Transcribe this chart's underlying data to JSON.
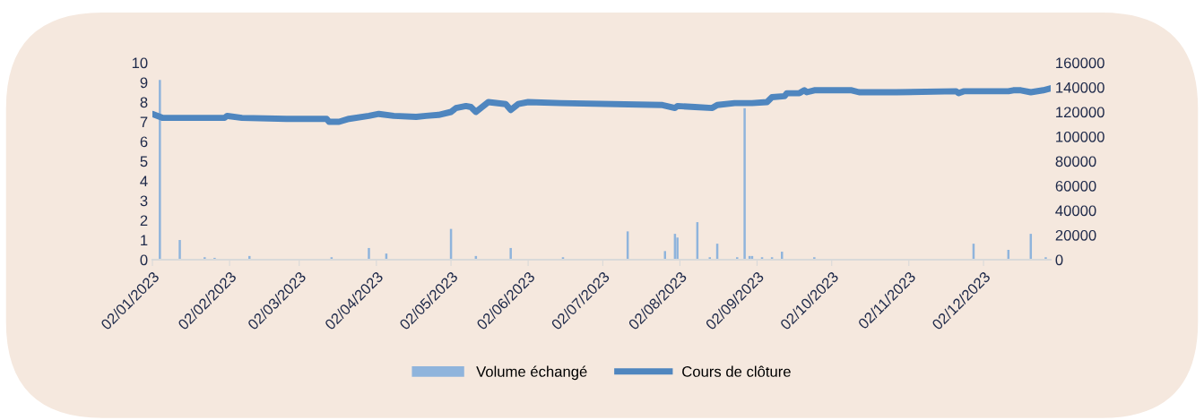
{
  "chart_data": {
    "type": "line",
    "xlim": [
      "2023-01-02",
      "2023-12-29"
    ],
    "xticks": [
      {
        "value": "2023-01-02",
        "label": "02/01/2023"
      },
      {
        "value": "2023-02-02",
        "label": "02/02/2023"
      },
      {
        "value": "2023-03-02",
        "label": "02/03/2023"
      },
      {
        "value": "2023-04-02",
        "label": "02/04/2023"
      },
      {
        "value": "2023-05-02",
        "label": "02/05/2023"
      },
      {
        "value": "2023-06-02",
        "label": "02/06/2023"
      },
      {
        "value": "2023-07-02",
        "label": "02/07/2023"
      },
      {
        "value": "2023-08-02",
        "label": "02/08/2023"
      },
      {
        "value": "2023-09-02",
        "label": "02/09/2023"
      },
      {
        "value": "2023-10-02",
        "label": "02/10/2023"
      },
      {
        "value": "2023-11-02",
        "label": "02/11/2023"
      },
      {
        "value": "2023-12-02",
        "label": "02/12/2023"
      }
    ],
    "ylim": [
      0,
      10
    ],
    "yticks": [
      0,
      1,
      2,
      3,
      4,
      5,
      6,
      7,
      8,
      9,
      10
    ],
    "y2lim": [
      0,
      160000
    ],
    "y2ticks": [
      0,
      20000,
      40000,
      60000,
      80000,
      100000,
      120000,
      140000,
      160000
    ],
    "grid": false,
    "legend": "bottom",
    "series": [
      {
        "name": "Volume échangé",
        "type": "bar",
        "axis": "y2",
        "color": "#8fb4dc",
        "x": [
          "2023-01-05",
          "2023-01-13",
          "2023-01-23",
          "2023-01-27",
          "2023-02-10",
          "2023-03-15",
          "2023-03-30",
          "2023-04-06",
          "2023-05-02",
          "2023-05-12",
          "2023-05-26",
          "2023-06-16",
          "2023-06-23",
          "2023-07-12",
          "2023-07-27",
          "2023-07-31",
          "2023-08-01",
          "2023-08-09",
          "2023-08-14",
          "2023-08-17",
          "2023-08-25",
          "2023-08-28",
          "2023-08-30",
          "2023-08-31",
          "2023-09-04",
          "2023-09-08",
          "2023-09-12",
          "2023-09-25",
          "2023-11-28",
          "2023-12-12",
          "2023-12-21",
          "2023-12-27"
        ],
        "values": [
          146000,
          16000,
          2000,
          1500,
          3000,
          2000,
          9500,
          5000,
          25000,
          3000,
          9500,
          2000,
          null,
          23000,
          7000,
          21000,
          18000,
          30500,
          2000,
          13000,
          2000,
          123000,
          3000,
          3000,
          2000,
          2000,
          6500,
          2000,
          13000,
          8000,
          21000,
          2000
        ]
      },
      {
        "name": "Cours de clôture",
        "axis": "y",
        "color": "#4f86bf",
        "x": [
          "2023-01-02",
          "2023-01-06",
          "2023-01-31",
          "2023-02-01",
          "2023-02-07",
          "2023-02-25",
          "2023-03-13",
          "2023-03-14",
          "2023-03-18",
          "2023-03-22",
          "2023-03-30",
          "2023-04-03",
          "2023-04-09",
          "2023-04-18",
          "2023-04-22",
          "2023-04-27",
          "2023-05-02",
          "2023-05-04",
          "2023-05-08",
          "2023-05-10",
          "2023-05-12",
          "2023-05-17",
          "2023-05-24",
          "2023-05-26",
          "2023-05-29",
          "2023-06-02",
          "2023-06-15",
          "2023-07-26",
          "2023-07-31",
          "2023-08-01",
          "2023-08-08",
          "2023-08-15",
          "2023-08-17",
          "2023-08-24",
          "2023-08-31",
          "2023-09-06",
          "2023-09-08",
          "2023-09-13",
          "2023-09-14",
          "2023-09-19",
          "2023-09-21",
          "2023-09-22",
          "2023-09-25",
          "2023-10-10",
          "2023-10-13",
          "2023-10-28",
          "2023-11-21",
          "2023-11-22",
          "2023-11-24",
          "2023-12-12",
          "2023-12-14",
          "2023-12-17",
          "2023-12-21",
          "2023-12-26",
          "2023-12-29"
        ],
        "values": [
          7.4,
          7.2,
          7.2,
          7.3,
          7.2,
          7.15,
          7.15,
          7.0,
          7.0,
          7.15,
          7.3,
          7.4,
          7.3,
          7.25,
          7.3,
          7.35,
          7.5,
          7.7,
          7.8,
          7.75,
          7.5,
          8.0,
          7.9,
          7.6,
          7.9,
          8.0,
          7.95,
          7.85,
          7.7,
          7.8,
          7.75,
          7.7,
          7.85,
          7.95,
          7.95,
          8.0,
          8.25,
          8.3,
          8.45,
          8.45,
          8.6,
          8.5,
          8.6,
          8.6,
          8.5,
          8.5,
          8.55,
          8.45,
          8.55,
          8.55,
          8.6,
          8.6,
          8.5,
          8.6,
          8.7
        ]
      }
    ]
  }
}
